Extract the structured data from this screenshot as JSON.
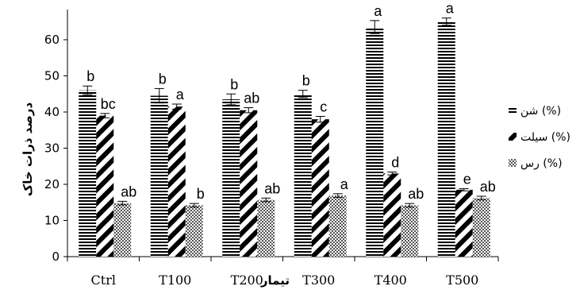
{
  "chart_data": {
    "type": "bar",
    "xlabel": "تیمار",
    "ylabel": "درصد ذرات خاک",
    "ylim": [
      0,
      70
    ],
    "yticks": [
      "0",
      "10",
      "20",
      "30",
      "40",
      "50",
      "60"
    ],
    "categories": [
      "Ctrl",
      "T100",
      "T200",
      "T300",
      "T400",
      "T500"
    ],
    "legend_position": "right",
    "series": [
      {
        "name": "شن (%)",
        "pattern": "horizontal-lines",
        "values": [
          46.0,
          44.5,
          43.5,
          45.0,
          63.5,
          65.0
        ],
        "errors": [
          1.2,
          2.0,
          1.5,
          1.0,
          1.8,
          1.0
        ],
        "letters": [
          "b",
          "b",
          "b",
          "b",
          "a",
          "a"
        ]
      },
      {
        "name": "سیلت (%)",
        "pattern": "wide-diagonal",
        "values": [
          39.0,
          41.5,
          40.5,
          38.0,
          23.0,
          18.5
        ],
        "errors": [
          0.6,
          0.7,
          0.7,
          0.8,
          0.4,
          0.3
        ],
        "letters": [
          "bc",
          "a",
          "ab",
          "c",
          "d",
          "e"
        ]
      },
      {
        "name": "رس (%)",
        "pattern": "crosshatch",
        "values": [
          14.8,
          14.2,
          15.7,
          16.9,
          14.2,
          16.2
        ],
        "errors": [
          0.5,
          0.5,
          0.5,
          0.5,
          0.5,
          0.5
        ],
        "letters": [
          "ab",
          "b",
          "ab",
          "a",
          "ab",
          "ab"
        ]
      }
    ]
  }
}
